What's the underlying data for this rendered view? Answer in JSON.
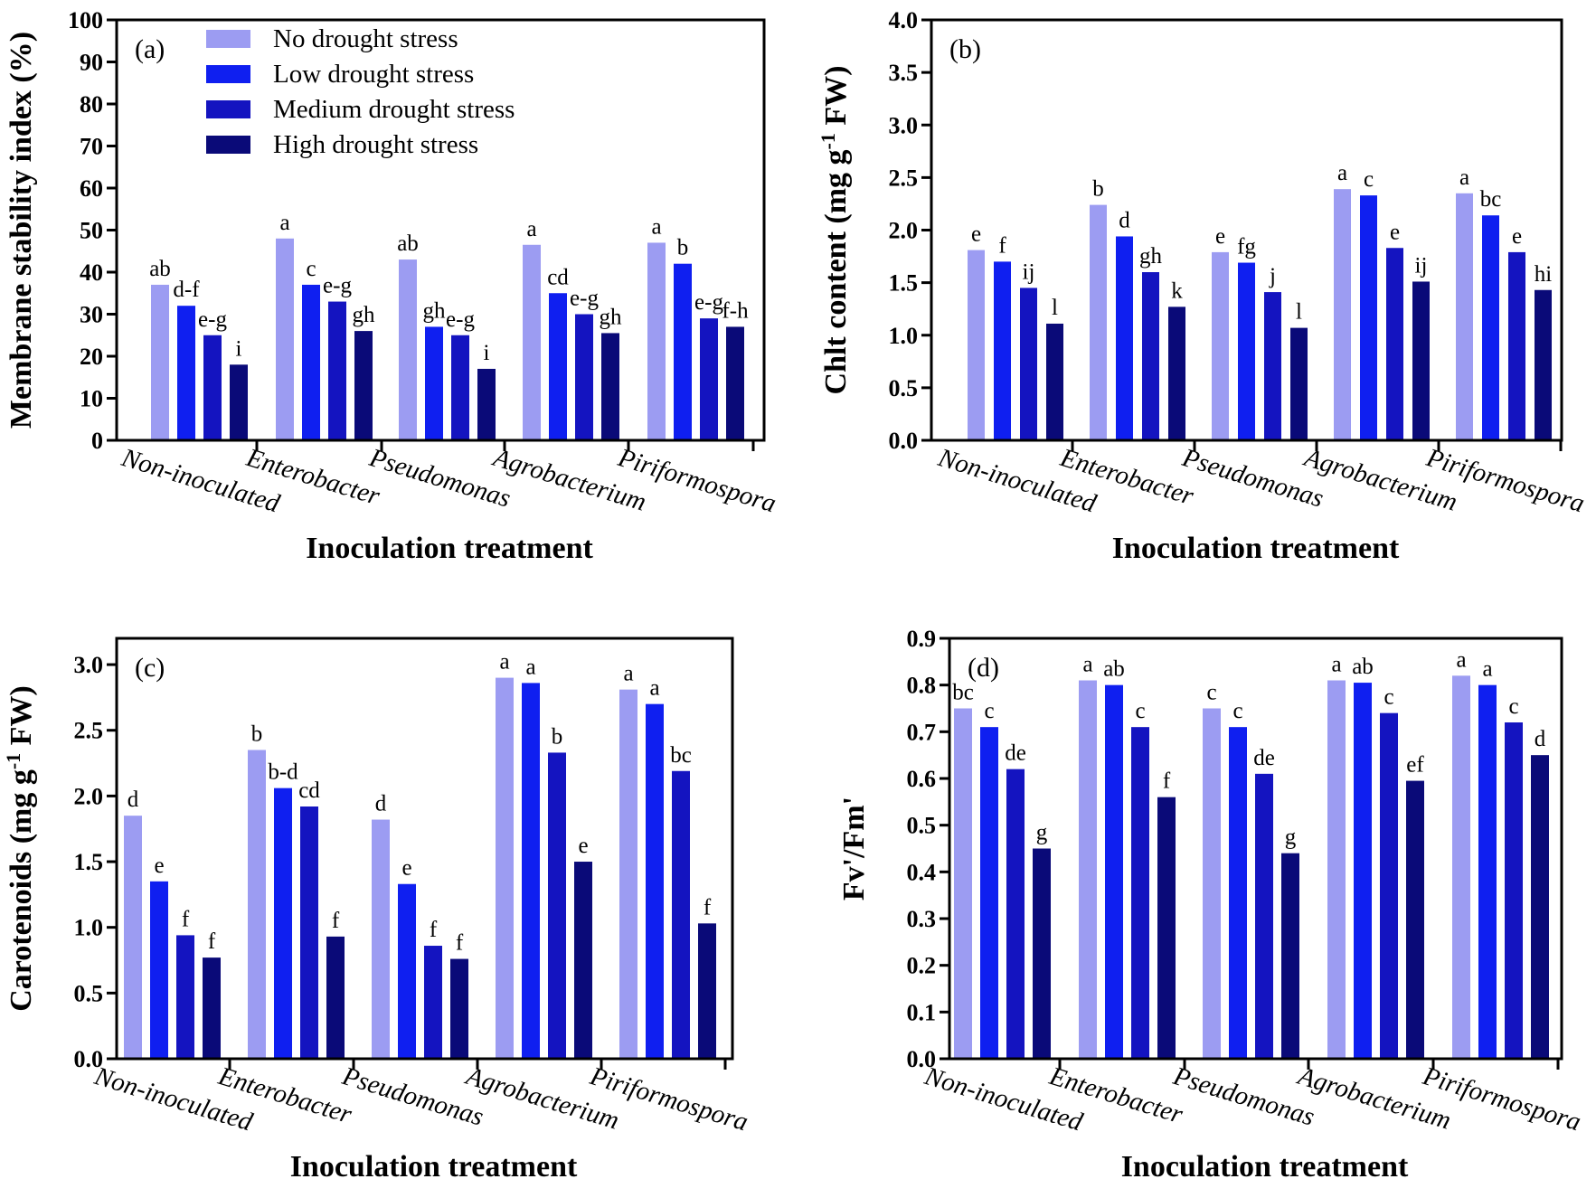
{
  "legend": [
    {
      "label": "No drought stress",
      "color": "#9c9cf2"
    },
    {
      "label": "Low drought stress",
      "color": "#0f1ff0"
    },
    {
      "label": "Medium drought stress",
      "color": "#1414c0"
    },
    {
      "label": "High drought stress",
      "color": "#0a0a78"
    }
  ],
  "chart_data": [
    {
      "type": "bar",
      "panel_label": "(a)",
      "title": "",
      "xlabel": "Inoculation treatment",
      "ylabel": "Membrane stability index (%)",
      "ylabel_sup": "",
      "ylabel_suffix": "",
      "ylim": [
        0,
        100
      ],
      "yticks": [
        "0",
        "10",
        "20",
        "30",
        "40",
        "50",
        "60",
        "70",
        "80",
        "90",
        "100"
      ],
      "categories": [
        "Non-inoculated",
        "Enterobacter",
        "Pseudomonas",
        "Agrobacterium",
        "Piriformospora"
      ],
      "series": [
        {
          "name": "No drought stress",
          "values": [
            37,
            48,
            43,
            46.5,
            47
          ],
          "letters": [
            "ab",
            "a",
            "ab",
            "a",
            "a"
          ]
        },
        {
          "name": "Low drought stress",
          "values": [
            32,
            37,
            27,
            35,
            42
          ],
          "letters": [
            "d-f",
            "c",
            "gh",
            "cd",
            "b"
          ]
        },
        {
          "name": "Medium drought stress",
          "values": [
            25,
            33,
            25,
            30,
            29
          ],
          "letters": [
            "e-g",
            "e-g",
            "e-g",
            "e-g",
            "e-g"
          ]
        },
        {
          "name": "High drought stress",
          "values": [
            18,
            26,
            17,
            25.5,
            27
          ],
          "letters": [
            "i",
            "gh",
            "i",
            "gh",
            "f-h"
          ]
        }
      ]
    },
    {
      "type": "bar",
      "panel_label": "(b)",
      "title": "",
      "xlabel": "Inoculation treatment",
      "ylabel": "Chlt content (mg g",
      "ylabel_sup": "-1",
      "ylabel_suffix": " FW)",
      "ylim": [
        0,
        4
      ],
      "yticks": [
        "0.0",
        "0.5",
        "1.0",
        "1.5",
        "2.0",
        "2.5",
        "3.0",
        "3.5",
        "4.0"
      ],
      "categories": [
        "Non-inoculated",
        "Enterobacter",
        "Pseudomonas",
        "Agrobacterium",
        "Piriformospora"
      ],
      "series": [
        {
          "name": "No drought stress",
          "values": [
            1.81,
            2.24,
            1.79,
            2.39,
            2.35
          ],
          "letters": [
            "e",
            "b",
            "e",
            "a",
            "a"
          ]
        },
        {
          "name": "Low drought stress",
          "values": [
            1.7,
            1.94,
            1.69,
            2.33,
            2.14
          ],
          "letters": [
            "f",
            "d",
            "fg",
            "c",
            "bc"
          ]
        },
        {
          "name": "Medium drought stress",
          "values": [
            1.45,
            1.6,
            1.41,
            1.83,
            1.79
          ],
          "letters": [
            "ij",
            "gh",
            "j",
            "e",
            "e"
          ]
        },
        {
          "name": "High drought stress",
          "values": [
            1.11,
            1.27,
            1.07,
            1.51,
            1.43
          ],
          "letters": [
            "l",
            "k",
            "l",
            "ij",
            "hi"
          ]
        }
      ]
    },
    {
      "type": "bar",
      "panel_label": "(c)",
      "title": "",
      "xlabel": "Inoculation treatment",
      "ylabel": "Carotenoids (mg g",
      "ylabel_sup": "-1",
      "ylabel_suffix": " FW)",
      "ylim": [
        0,
        3.2
      ],
      "yticks": [
        "0.0",
        "0.5",
        "1.0",
        "1.5",
        "2.0",
        "2.5",
        "3.0"
      ],
      "categories": [
        "Non-inoculated",
        "Enterobacter",
        "Pseudomonas",
        "Agrobacterium",
        "Piriformospora"
      ],
      "series": [
        {
          "name": "No drought stress",
          "values": [
            1.85,
            2.35,
            1.82,
            2.9,
            2.81
          ],
          "letters": [
            "d",
            "b",
            "d",
            "a",
            "a"
          ]
        },
        {
          "name": "Low drought stress",
          "values": [
            1.35,
            2.06,
            1.33,
            2.86,
            2.7
          ],
          "letters": [
            "e",
            "b-d",
            "e",
            "a",
            "a"
          ]
        },
        {
          "name": "Medium drought stress",
          "values": [
            0.94,
            1.92,
            0.86,
            2.33,
            2.19
          ],
          "letters": [
            "f",
            "cd",
            "f",
            "b",
            "bc"
          ]
        },
        {
          "name": "High drought stress",
          "values": [
            0.77,
            0.93,
            0.76,
            1.5,
            1.03
          ],
          "letters": [
            "f",
            "f",
            "f",
            "e",
            "f"
          ]
        }
      ]
    },
    {
      "type": "bar",
      "panel_label": "(d)",
      "title": "",
      "xlabel": "Inoculation treatment",
      "ylabel": "Fv'/Fm'",
      "ylabel_sup": "",
      "ylabel_suffix": "",
      "ylim": [
        0,
        0.9
      ],
      "yticks": [
        "0.0",
        "0.1",
        "0.2",
        "0.3",
        "0.4",
        "0.5",
        "0.6",
        "0.7",
        "0.8",
        "0.9"
      ],
      "categories": [
        "Non-inoculated",
        "Enterobacter",
        "Pseudomonas",
        "Agrobacterium",
        "Piriformospora"
      ],
      "series": [
        {
          "name": "No drought stress",
          "values": [
            0.75,
            0.81,
            0.75,
            0.81,
            0.82
          ],
          "letters": [
            "bc",
            "a",
            "c",
            "a",
            "a"
          ]
        },
        {
          "name": "Low drought stress",
          "values": [
            0.71,
            0.8,
            0.71,
            0.805,
            0.8
          ],
          "letters": [
            "c",
            "ab",
            "c",
            "ab",
            "a"
          ]
        },
        {
          "name": "Medium drought stress",
          "values": [
            0.62,
            0.71,
            0.61,
            0.74,
            0.72
          ],
          "letters": [
            "de",
            "c",
            "de",
            "c",
            "c"
          ]
        },
        {
          "name": "High drought stress",
          "values": [
            0.45,
            0.56,
            0.44,
            0.595,
            0.65
          ],
          "letters": [
            "g",
            "f",
            "g",
            "ef",
            "d"
          ]
        }
      ]
    }
  ]
}
